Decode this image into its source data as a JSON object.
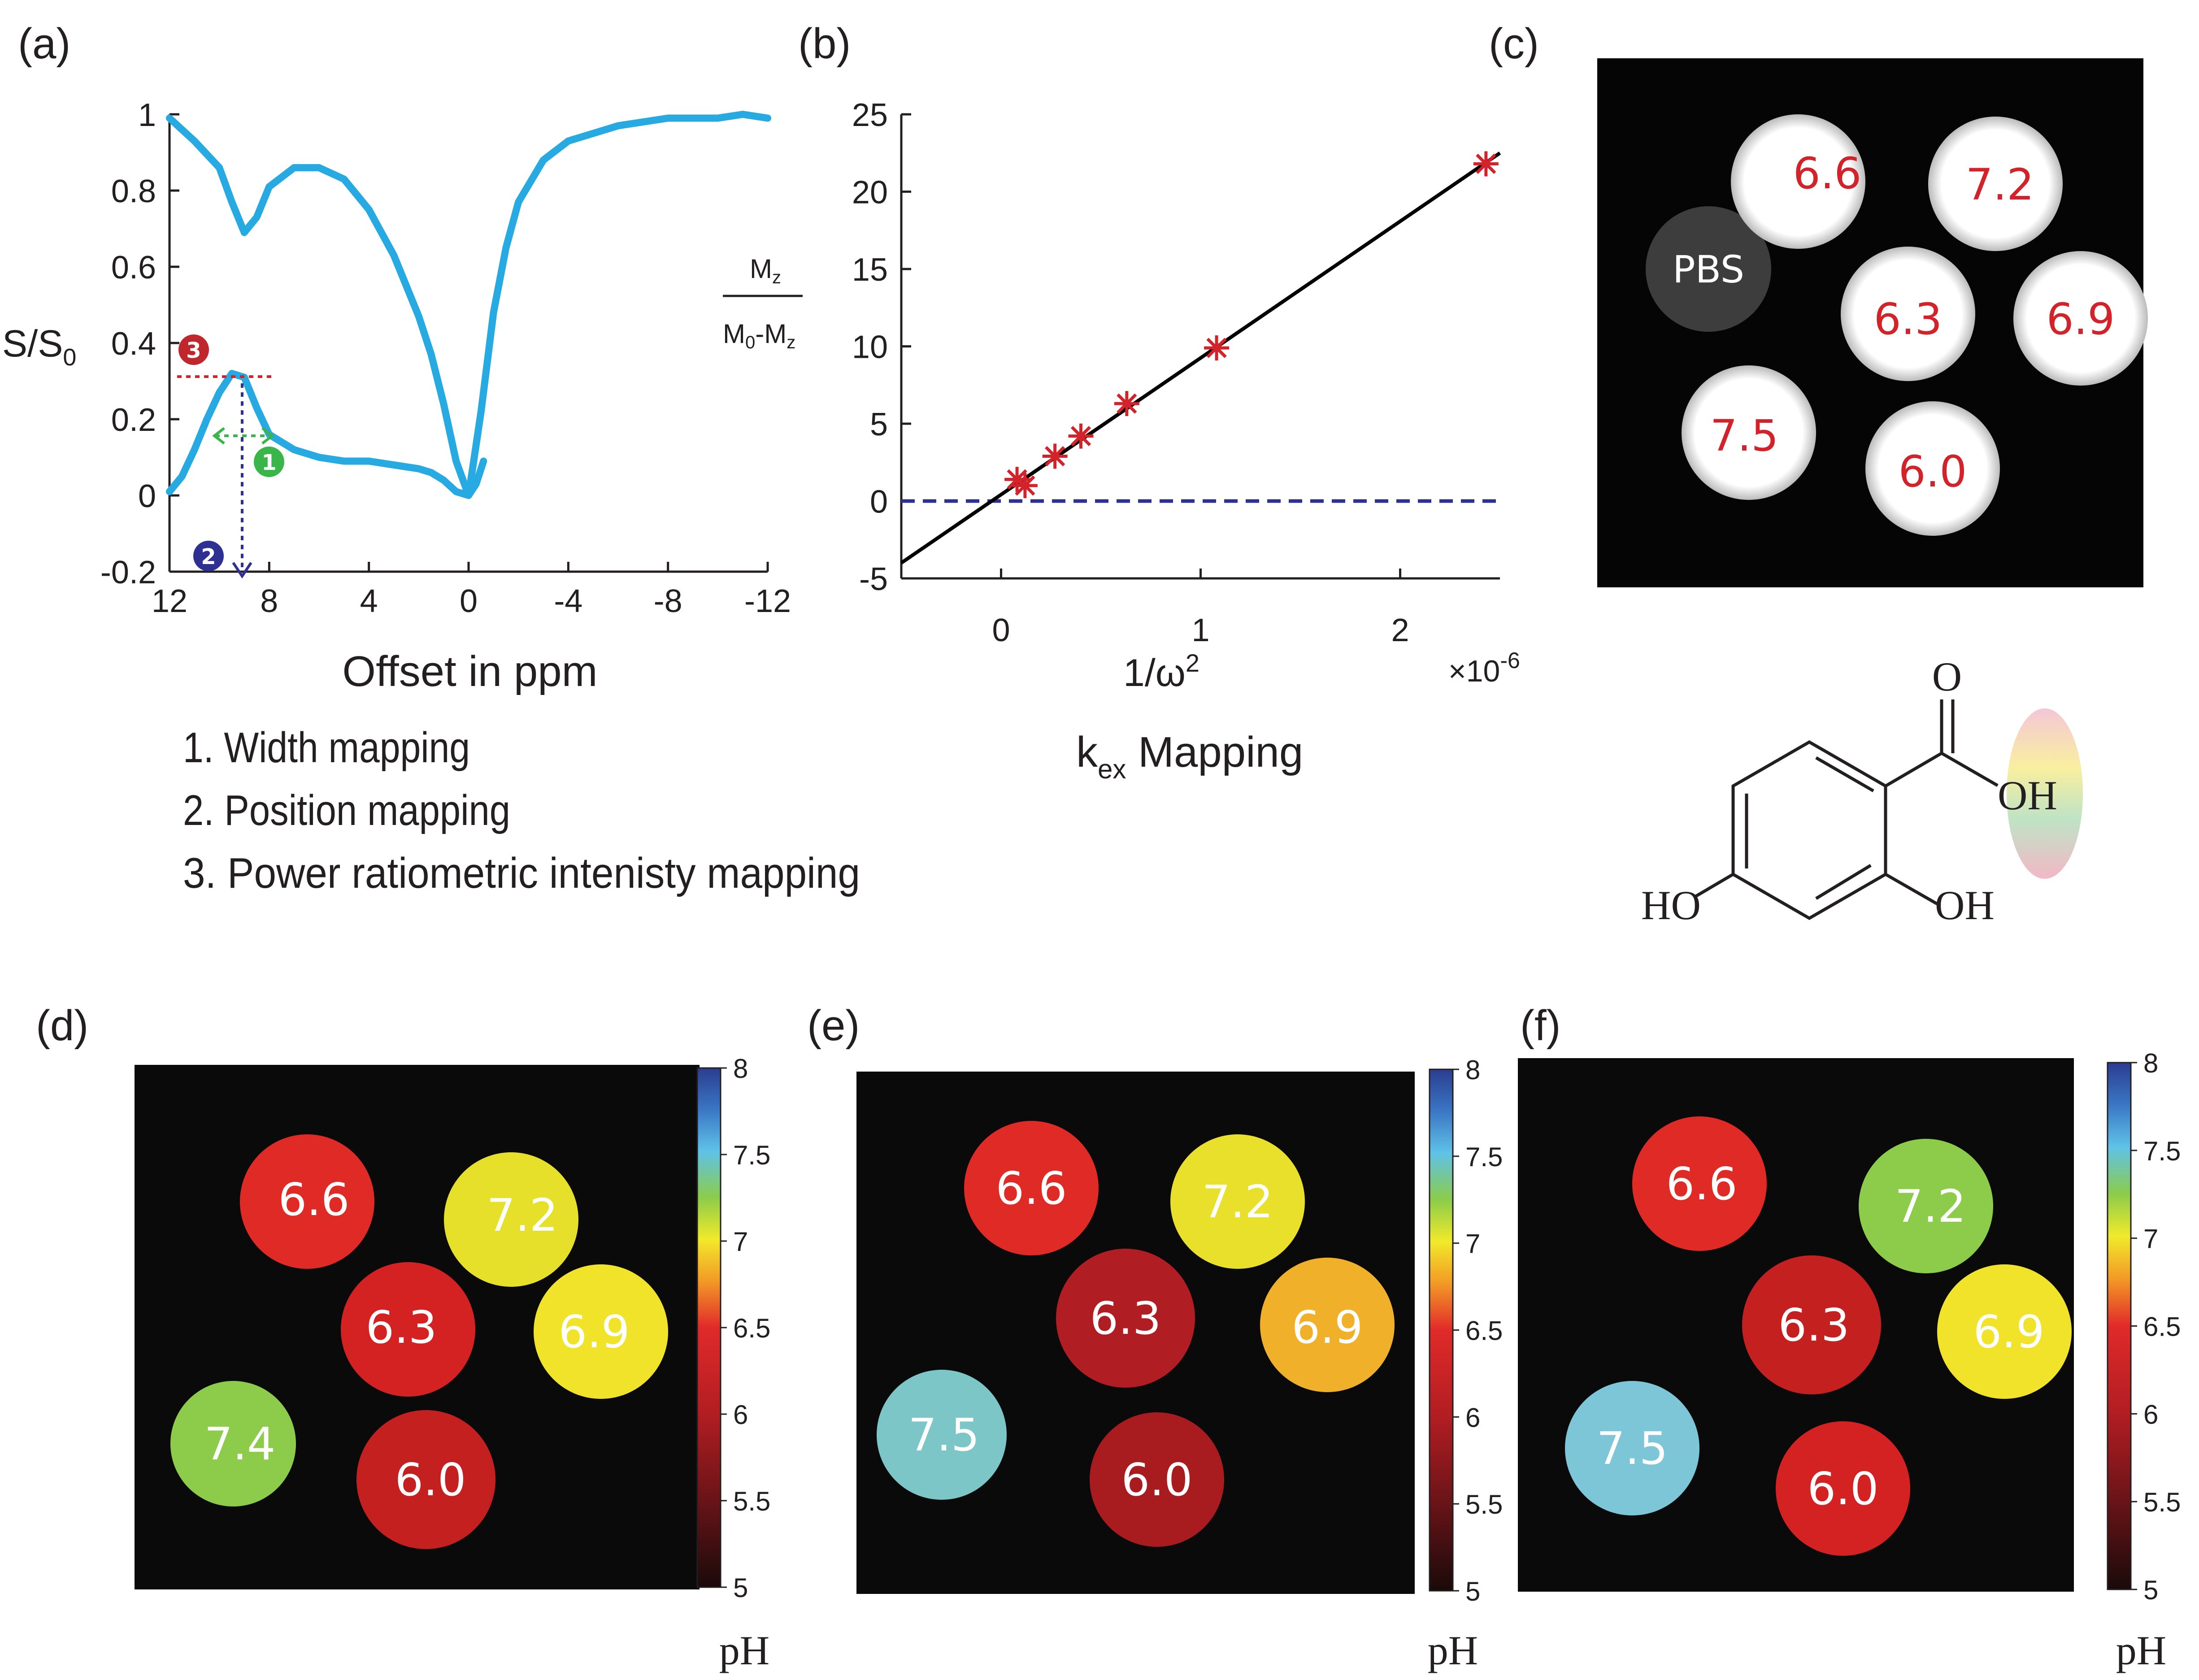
{
  "panels": {
    "a": {
      "tag": "(a)",
      "ylabel_main": "S/S",
      "ylabel_sub": "0",
      "xlabel": "Offset in ppm",
      "annotations": [
        "1",
        "2",
        "3"
      ],
      "legend_items": [
        "1. Width mapping",
        "2. Position mapping",
        "3. Power ratiometric intenisty mapping"
      ]
    },
    "b": {
      "tag": "(b)",
      "ylabel_num_main": "M",
      "ylabel_num_sub": "z",
      "ylabel_den_a": "M",
      "ylabel_den_a_sub": "0",
      "ylabel_den_b": "-M",
      "ylabel_den_b_sub": "z",
      "xlabel_main": "1/ω",
      "xlabel_sup": "2",
      "multiplier_main": "×10",
      "multiplier_sup": "-6",
      "caption_main": "k",
      "caption_sub": "ex",
      "caption_rest": " Mapping"
    },
    "c": {
      "tag": "(c)",
      "labels": [
        "PBS",
        "6.6",
        "7.2",
        "6.3",
        "6.9",
        "7.5",
        "6.0"
      ],
      "molecule": {
        "o_top": "O",
        "oh_acid": "OH",
        "ho_left": "HO",
        "oh_right": "OH"
      }
    },
    "d": {
      "tag": "(d)",
      "labels": [
        "6.6",
        "7.2",
        "6.3",
        "6.9",
        "7.4",
        "6.0"
      ]
    },
    "e": {
      "tag": "(e)",
      "labels": [
        "6.6",
        "7.2",
        "6.3",
        "6.9",
        "7.5",
        "6.0"
      ]
    },
    "f": {
      "tag": "(f)",
      "labels": [
        "6.6",
        "7.2",
        "6.3",
        "6.9",
        "7.5",
        "6.0"
      ]
    },
    "colorbar": {
      "ticks": [
        "8",
        "7.5",
        "7",
        "6.5",
        "6",
        "5.5",
        "5"
      ],
      "label": "pH",
      "range": [
        5,
        8
      ]
    }
  },
  "chart_data": [
    {
      "type": "line",
      "panel": "a",
      "xlabel": "Offset in ppm",
      "ylabel": "S/S0",
      "xlim": [
        12,
        -12
      ],
      "ylim": [
        -0.2,
        1
      ],
      "xticks": [
        "12",
        "8",
        "4",
        "0",
        "-4",
        "-8",
        "-12"
      ],
      "yticks": [
        "1",
        "0.8",
        "0.6",
        "0.4",
        "0.2",
        "0",
        "-0.2"
      ],
      "series": [
        {
          "color": "#27aae1",
          "x": [
            12,
            11,
            10,
            9.5,
            9,
            8.5,
            8,
            7,
            6,
            5,
            4,
            3,
            2,
            1.5,
            1,
            0.5,
            0,
            -0.5,
            -1,
            -1.5,
            -2,
            -3,
            -4,
            -5,
            -6,
            -7,
            -8,
            -9,
            -10,
            -11,
            -12
          ],
          "y": [
            0.99,
            0.93,
            0.86,
            0.77,
            0.69,
            0.73,
            0.81,
            0.86,
            0.86,
            0.83,
            0.75,
            0.63,
            0.47,
            0.37,
            0.24,
            0.09,
            0.0,
            0.22,
            0.48,
            0.65,
            0.77,
            0.88,
            0.93,
            0.95,
            0.97,
            0.98,
            0.99,
            0.99,
            0.99,
            1.0,
            0.99
          ]
        },
        {
          "color": "#27aae1",
          "x": [
            12,
            11.5,
            11,
            10.5,
            10,
            9.5,
            9,
            8.5,
            8,
            7,
            6,
            5,
            4,
            3,
            2,
            1.5,
            1,
            0.5,
            0,
            -0.3,
            -0.6
          ],
          "y": [
            0.01,
            0.05,
            0.12,
            0.2,
            0.27,
            0.32,
            0.31,
            0.23,
            0.16,
            0.12,
            0.1,
            0.09,
            0.09,
            0.08,
            0.07,
            0.06,
            0.04,
            0.01,
            0.0,
            0.03,
            0.09
          ]
        }
      ]
    },
    {
      "type": "scatter",
      "panel": "b",
      "xlim": [
        -0.5,
        2.5
      ],
      "ylim": [
        -5,
        25
      ],
      "xticks": [
        "0",
        "1",
        "2"
      ],
      "yticks": [
        "25",
        "20",
        "15",
        "10",
        "5",
        "0",
        "-5"
      ],
      "points": {
        "color": "#d2232a",
        "x": [
          0.08,
          0.12,
          0.27,
          0.4,
          0.63,
          1.08,
          2.43
        ],
        "y": [
          1.4,
          1.0,
          2.9,
          4.2,
          6.3,
          9.9,
          21.8
        ]
      },
      "fit_line": {
        "color": "#000000",
        "x": [
          -0.5,
          2.5
        ],
        "y": [
          -4.0,
          22.5
        ]
      },
      "zero_line": {
        "color": "#2e3192",
        "y": 0,
        "style": "dashed"
      }
    }
  ]
}
